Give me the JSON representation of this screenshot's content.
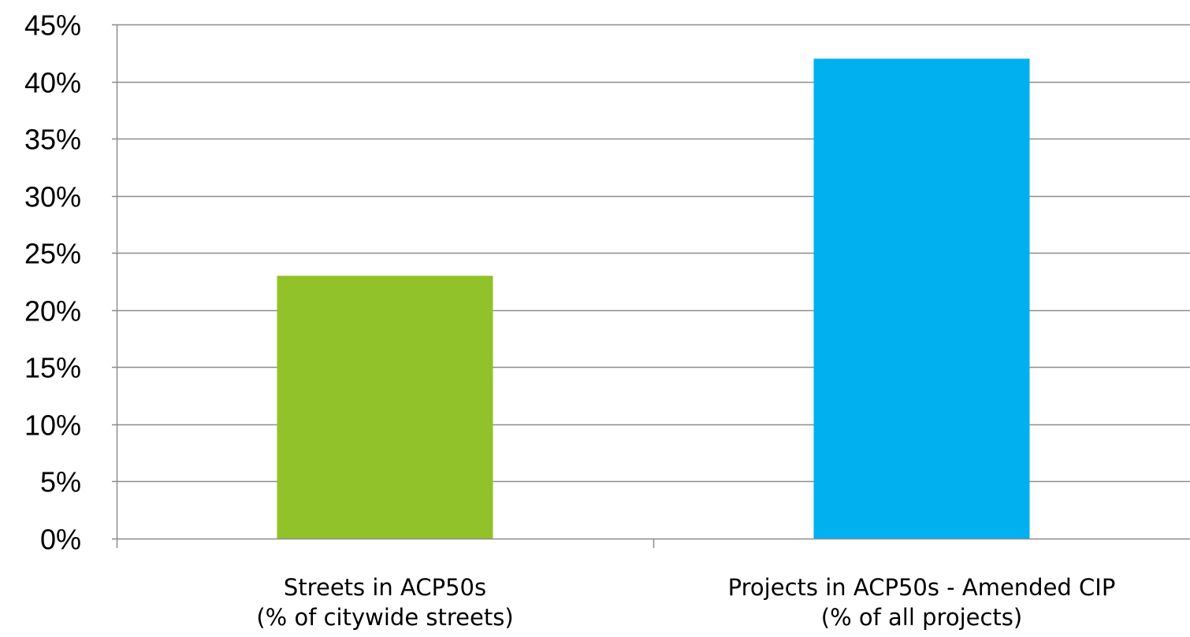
{
  "chart_data": {
    "type": "bar",
    "categories": [
      [
        "Streets in ACP50s",
        "(% of citywide streets)"
      ],
      [
        "Projects in ACP50s - Amended CIP",
        "(% of all projects)"
      ]
    ],
    "values": [
      23,
      42
    ],
    "bar_colors": [
      "#92C229",
      "#00B0EF"
    ],
    "ylim": [
      0,
      45
    ],
    "yticks": [
      0,
      5,
      10,
      15,
      20,
      25,
      30,
      35,
      40,
      45
    ],
    "ytick_labels": [
      "0%",
      "5%",
      "10%",
      "15%",
      "20%",
      "25%",
      "30%",
      "35%",
      "40%",
      "45%"
    ],
    "grid": true,
    "gridline_color": "#8C8C8C",
    "legend": "none",
    "title": "",
    "xlabel": "",
    "ylabel": ""
  }
}
